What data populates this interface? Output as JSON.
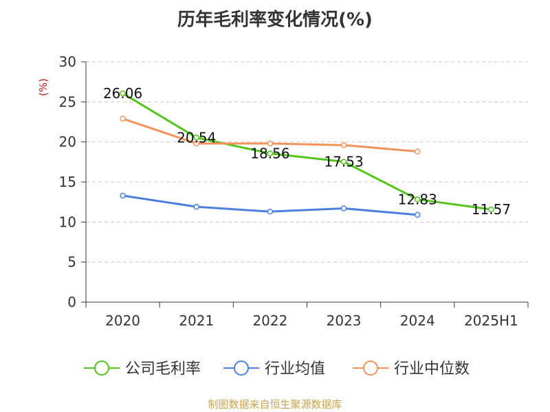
{
  "chart_data": {
    "type": "line",
    "title": "历年毛利率变化情况(%)",
    "ylabel": "(%)",
    "categories": [
      "2020",
      "2021",
      "2022",
      "2023",
      "2024",
      "2025H1"
    ],
    "ylim": [
      0,
      30
    ],
    "yticks": [
      0,
      5,
      10,
      15,
      20,
      25,
      30
    ],
    "grid": true,
    "legend_position": "bottom",
    "series": [
      {
        "name": "公司毛利率",
        "color": "#52c41a",
        "values": [
          26.06,
          20.54,
          18.56,
          17.53,
          12.83,
          11.57
        ],
        "labels": [
          "26.06",
          "20.54",
          "18.56",
          "17.53",
          "12.83",
          "11.57"
        ]
      },
      {
        "name": "行业均值",
        "color": "#4a7fe0",
        "values": [
          13.3,
          11.9,
          11.3,
          11.7,
          10.9,
          null
        ]
      },
      {
        "name": "行业中位数",
        "color": "#f5925a",
        "values": [
          22.9,
          19.8,
          19.8,
          19.6,
          18.8,
          null
        ]
      }
    ]
  },
  "source": "制图数据来自恒生聚源数据库"
}
